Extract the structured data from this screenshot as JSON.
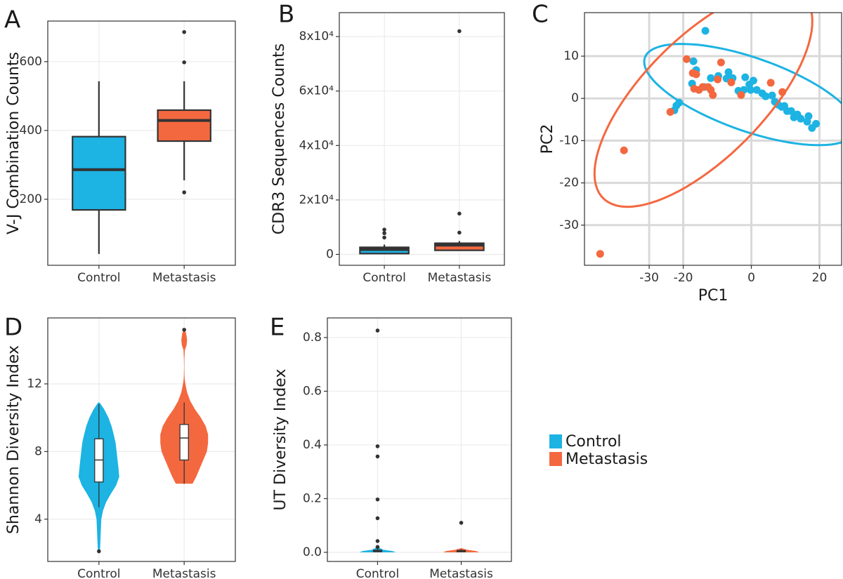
{
  "chart_data": [
    {
      "panel": "A",
      "type": "box",
      "ylabel": "V-J Combination Counts",
      "ylim": [
        8,
        718
      ],
      "yticks": [
        200,
        400,
        600
      ],
      "grid": true,
      "box_width": 0.62,
      "boxes": [
        {
          "name": "Control",
          "color": "#1db3e3",
          "low": 41,
          "q1": 169,
          "median": 286,
          "q3": 382,
          "high": 543,
          "outliers": []
        },
        {
          "name": "Metastasis",
          "color": "#f4683f",
          "low": 255,
          "q1": 369,
          "median": 429,
          "q3": 459,
          "high": 543,
          "outliers": [
            220,
            598,
            686
          ]
        }
      ]
    },
    {
      "panel": "B",
      "type": "box",
      "ylabel": "CDR3 Sequences Counts",
      "ylim": [
        -4000,
        88800
      ],
      "yticks": [
        0,
        {
          "value": 20000,
          "label": "2x10⁴"
        },
        {
          "value": 40000,
          "label": "4x10⁴"
        },
        {
          "value": 60000,
          "label": "6x10⁴"
        },
        {
          "value": 80000,
          "label": "8x10⁴"
        }
      ],
      "grid": true,
      "box_width": 0.65,
      "boxes": [
        {
          "name": "Control",
          "color": "#1db3e3",
          "low": 0,
          "q1": 300,
          "median": 1800,
          "q3": 2600,
          "high": 3600,
          "outliers": [
            6200,
            7800,
            9100
          ]
        },
        {
          "name": "Metastasis",
          "color": "#f4683f",
          "low": 1300,
          "q1": 1500,
          "median": 3400,
          "q3": 4100,
          "high": 4900,
          "outliers": [
            8000,
            15000,
            82000
          ]
        }
      ]
    },
    {
      "panel": "C",
      "type": "scatter",
      "xlabel": "PC1",
      "ylabel": "PC2",
      "xlim": [
        -49,
        26.5
      ],
      "ylim": [
        -39.5,
        20.3
      ],
      "xticks": [
        -30,
        -20,
        0,
        20
      ],
      "yticks": [
        -30,
        -20,
        -10,
        0,
        10
      ],
      "grid": true,
      "ellipse": true,
      "series": [
        {
          "name": "Control",
          "color": "#1db3e3",
          "x": [
            -13.5,
            -17,
            -16.2,
            -17.4,
            -22,
            -21.2,
            -22.6,
            -13.9,
            -11.9,
            -9.7,
            -6.7,
            -7.3,
            -5.5,
            -3.8,
            -2.2,
            -0.6,
            -0.2,
            1.6,
            3.2,
            4.2,
            6.1,
            6.9,
            7.9,
            8.9,
            10.5,
            11.7,
            12.5,
            14.5,
            16.4,
            17.8,
            19,
            16.8,
            13.5,
            9.7,
            -1.8,
            0.6
          ],
          "y": [
            16,
            8.8,
            6.7,
            3.5,
            -1.7,
            -1,
            -2.8,
            2.7,
            4.8,
            5.3,
            6.2,
            4.7,
            4.8,
            1.8,
            2,
            3.3,
            2,
            2,
            1.2,
            0.5,
            0.7,
            -0.8,
            -1.5,
            -2,
            -3,
            -3,
            -4.5,
            -4.8,
            -5.5,
            -7,
            -6,
            -4.2,
            -3.8,
            -1.8,
            5,
            4.2
          ]
        },
        {
          "name": "Metastasis",
          "color": "#f4683f",
          "x": [
            -44.4,
            -37.4,
            -23.8,
            -19,
            -17.2,
            -16.2,
            -16.8,
            -15.4,
            -14.3,
            -12.7,
            -11.9,
            -11.3,
            -9.9,
            -8.9,
            -5.9,
            5.7,
            9.1,
            -3
          ],
          "y": [
            -36.8,
            -12.3,
            -3.2,
            9.3,
            6,
            5.7,
            2.3,
            2,
            2.7,
            2.7,
            2,
            0.8,
            4.5,
            8.5,
            3.8,
            3.7,
            1.5,
            0.8
          ]
        }
      ]
    },
    {
      "panel": "D",
      "type": "violin",
      "ylabel": "Shannon Diversity Index",
      "ylim": [
        1.5,
        15.9
      ],
      "yticks": [
        4,
        8,
        12
      ],
      "grid": true,
      "box_width": 0.1,
      "violin_width": 0.28,
      "box_fill": "#ffffff",
      "boxes": [
        {
          "name": "Control",
          "color": "#1db3e3",
          "low": 4.7,
          "q1": 6.2,
          "median": 7.5,
          "q3": 8.75,
          "high": 10.8,
          "outliers": [
            2.1
          ],
          "density_y": [
            2,
            3,
            4,
            4.5,
            5,
            5.5,
            6,
            6.5,
            7,
            7.5,
            8,
            8.5,
            9,
            9.5,
            10,
            10.5,
            10.9
          ],
          "density": [
            0.04,
            0.07,
            0.1,
            0.17,
            0.3,
            0.5,
            0.72,
            0.85,
            0.82,
            0.78,
            0.74,
            0.7,
            0.62,
            0.53,
            0.4,
            0.22,
            0.03
          ]
        },
        {
          "name": "Metastasis",
          "color": "#f4683f",
          "low": 6.1,
          "q1": 7.5,
          "median": 8.8,
          "q3": 9.6,
          "high": 10.9,
          "outliers": [
            15.2
          ],
          "density_y": [
            6.1,
            6.5,
            7,
            7.5,
            8,
            8.5,
            9,
            9.5,
            10,
            10.5,
            11,
            11.5,
            12,
            12.3,
            12.6,
            13,
            13.5,
            14,
            14.3,
            14.6,
            15,
            15.2
          ],
          "density": [
            0.35,
            0.5,
            0.65,
            0.8,
            0.95,
            1,
            1,
            0.9,
            0.7,
            0.45,
            0.25,
            0.12,
            0.05,
            0.02,
            0.01,
            0.005,
            0.01,
            0.03,
            0.1,
            0.12,
            0.08,
            0.02
          ]
        }
      ]
    },
    {
      "panel": "E",
      "type": "violin",
      "ylabel": "UT Diversity Index",
      "ylim": [
        -0.034,
        0.873
      ],
      "yticks": [
        {
          "value": 0,
          "label": "0.0"
        },
        0.2,
        0.4,
        0.6,
        0.8
      ],
      "grid": true,
      "box_width": 0.1,
      "violin_width": 0.22,
      "box_fill": "#ffffff",
      "boxes": [
        {
          "name": "Control",
          "color": "#1db3e3",
          "low": 0,
          "q1": 0.002,
          "median": 0.005,
          "q3": 0.008,
          "high": 0.015,
          "outliers": [
            0.02,
            0.042,
            0.127,
            0.197,
            0.357,
            0.395,
            0.826
          ],
          "density_y": [
            0,
            0.005,
            0.01,
            0.015,
            0.02
          ],
          "density": [
            1,
            0.8,
            0.3,
            0.15,
            0.05
          ]
        },
        {
          "name": "Metastasis",
          "color": "#f4683f",
          "low": 0,
          "q1": 0.002,
          "median": 0.004,
          "q3": 0.007,
          "high": 0.012,
          "outliers": [
            0.11
          ],
          "density_y": [
            0,
            0.005,
            0.01,
            0.015
          ],
          "density": [
            1,
            0.8,
            0.3,
            0.05
          ]
        }
      ]
    }
  ]
}
